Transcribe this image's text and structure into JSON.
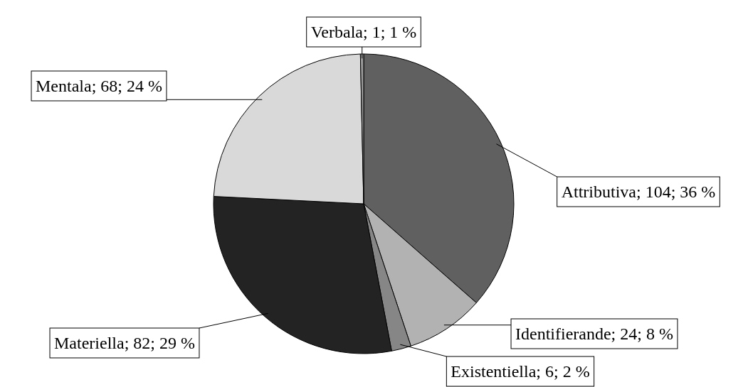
{
  "chart_data": {
    "type": "pie",
    "categories": [
      "Attributiva",
      "Identifierande",
      "Existentiella",
      "Materiella",
      "Mentala",
      "Verbala"
    ],
    "values": [
      104,
      24,
      6,
      82,
      68,
      1
    ],
    "colors": [
      "#606060",
      "#b2b2b2",
      "#868686",
      "#232323",
      "#d9d9d9",
      "#9a9a9a"
    ],
    "value_labels": [
      "104; 36 %",
      "24; 8 %",
      "6; 2 %",
      "82; 29 %",
      "68; 24 %",
      "1; 1 %"
    ]
  }
}
